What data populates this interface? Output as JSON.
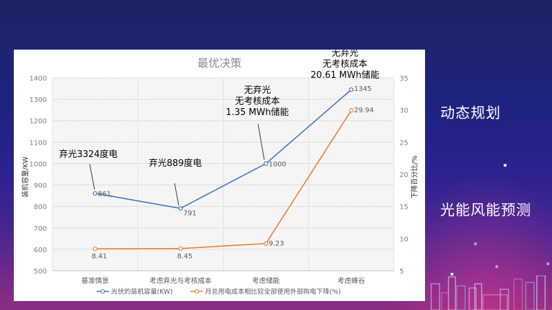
{
  "side_labels": [
    "动态规划",
    "光能风能预测"
  ],
  "chart_data": {
    "type": "line",
    "title": "最优决策",
    "categories": [
      "基准情景",
      "考虑弃光与考核成本",
      "考虑储能",
      "考虑峰谷"
    ],
    "series": [
      {
        "name": "光伏的装机容量(KW)",
        "axis": "left",
        "color": "#4472c4",
        "values": [
          861,
          791,
          1000,
          1345
        ],
        "labels": [
          "861",
          "791",
          "1000",
          "1345"
        ]
      },
      {
        "name": "月总用电成本相比较全部使用外部购电下降(%)",
        "axis": "right",
        "color": "#ed7d31",
        "values": [
          8.41,
          8.45,
          9.23,
          29.94
        ],
        "labels": [
          "8.41",
          "8.45",
          "9.23",
          "29.94"
        ]
      }
    ],
    "ylabel": "装机容量/KW",
    "ylim": [
      500,
      1400
    ],
    "yticks": [
      "500",
      "600",
      "700",
      "800",
      "900",
      "1000",
      "1100",
      "1200",
      "1300",
      "1400"
    ],
    "y2label": "下降百分比/%",
    "y2lim": [
      5,
      35
    ],
    "y2ticks": [
      "5",
      "10",
      "15",
      "20",
      "25",
      "30",
      "35"
    ],
    "grid": true,
    "legend": "bottom",
    "annotations": [
      {
        "category": 0,
        "lines": [
          "弃光3324度电"
        ]
      },
      {
        "category": 1,
        "lines": [
          "弃光889度电"
        ]
      },
      {
        "category": 2,
        "lines": [
          "无弃光",
          "无考核成本",
          "1.35 MWh储能"
        ]
      },
      {
        "category": 3,
        "lines": [
          "无弃光",
          "无考核成本",
          "20.61 MWh储能"
        ]
      }
    ]
  }
}
